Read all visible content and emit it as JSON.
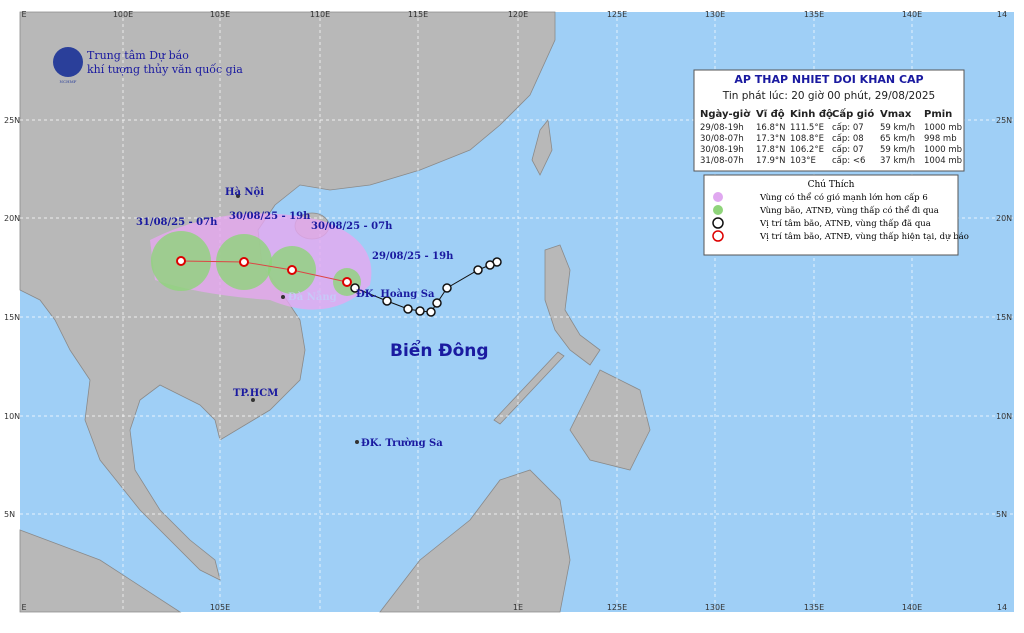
{
  "header": {
    "org_line1": "Trung tâm Dự báo",
    "org_line2": "khí tượng thủy văn quốc gia",
    "logo_text": "NCHMF"
  },
  "map": {
    "top_lon_labels": [
      "E",
      "100E",
      "105E",
      "110E",
      "115E",
      "120E",
      "125E",
      "130E",
      "135E",
      "140E",
      "14"
    ],
    "bottom_lon_labels": [
      "E",
      "105E",
      "1E",
      "125E",
      "130E",
      "135E",
      "140E",
      "14"
    ],
    "lat_labels": [
      "25N",
      "20N",
      "15N",
      "10N",
      "5N"
    ],
    "places": [
      "Hà Nội",
      "Đà Nẵng",
      "TP.HCM",
      "ĐK. Hoàng Sa",
      "ĐK. Trường Sa",
      "Biển Đông"
    ],
    "track_labels": [
      "31/08/25 - 07h",
      "30/08/25 - 19h",
      "30/08/25 - 07h",
      "29/08/25 - 19h"
    ]
  },
  "bulletin": {
    "title": "AP THAP NHIET DOI KHAN CAP",
    "issued": "Tin phát lúc: 20 giờ 00 phút, 29/08/2025",
    "columns": [
      "Ngày-giờ",
      "Vĩ độ",
      "Kinh độ",
      "Cấp gió",
      "Vmax",
      "Pmin"
    ],
    "rows": [
      [
        "29/08-19h",
        "16.8°N",
        "111.5°E",
        "cấp: 07",
        "59 km/h",
        "1000 mb"
      ],
      [
        "30/08-07h",
        "17.3°N",
        "108.8°E",
        "cấp: 08",
        "65 km/h",
        "998 mb"
      ],
      [
        "30/08-19h",
        "17.8°N",
        "106.2°E",
        "cấp: 07",
        "59 km/h",
        "1000 mb"
      ],
      [
        "31/08-07h",
        "17.9°N",
        "103°E",
        "cấp: <6",
        "37 km/h",
        "1004 mb"
      ]
    ]
  },
  "legend": {
    "title": "Chú Thích",
    "items": [
      "Vùng có thể có gió mạnh lớn hơn cấp 6",
      "Vùng bão, ATNĐ, vùng thấp có thể đi qua",
      "Vị trí tâm bão, ATNĐ, vùng thấp đã qua",
      "Vị trí tâm bão, ATNĐ, vùng thấp hiện tại, dự báo"
    ]
  }
}
